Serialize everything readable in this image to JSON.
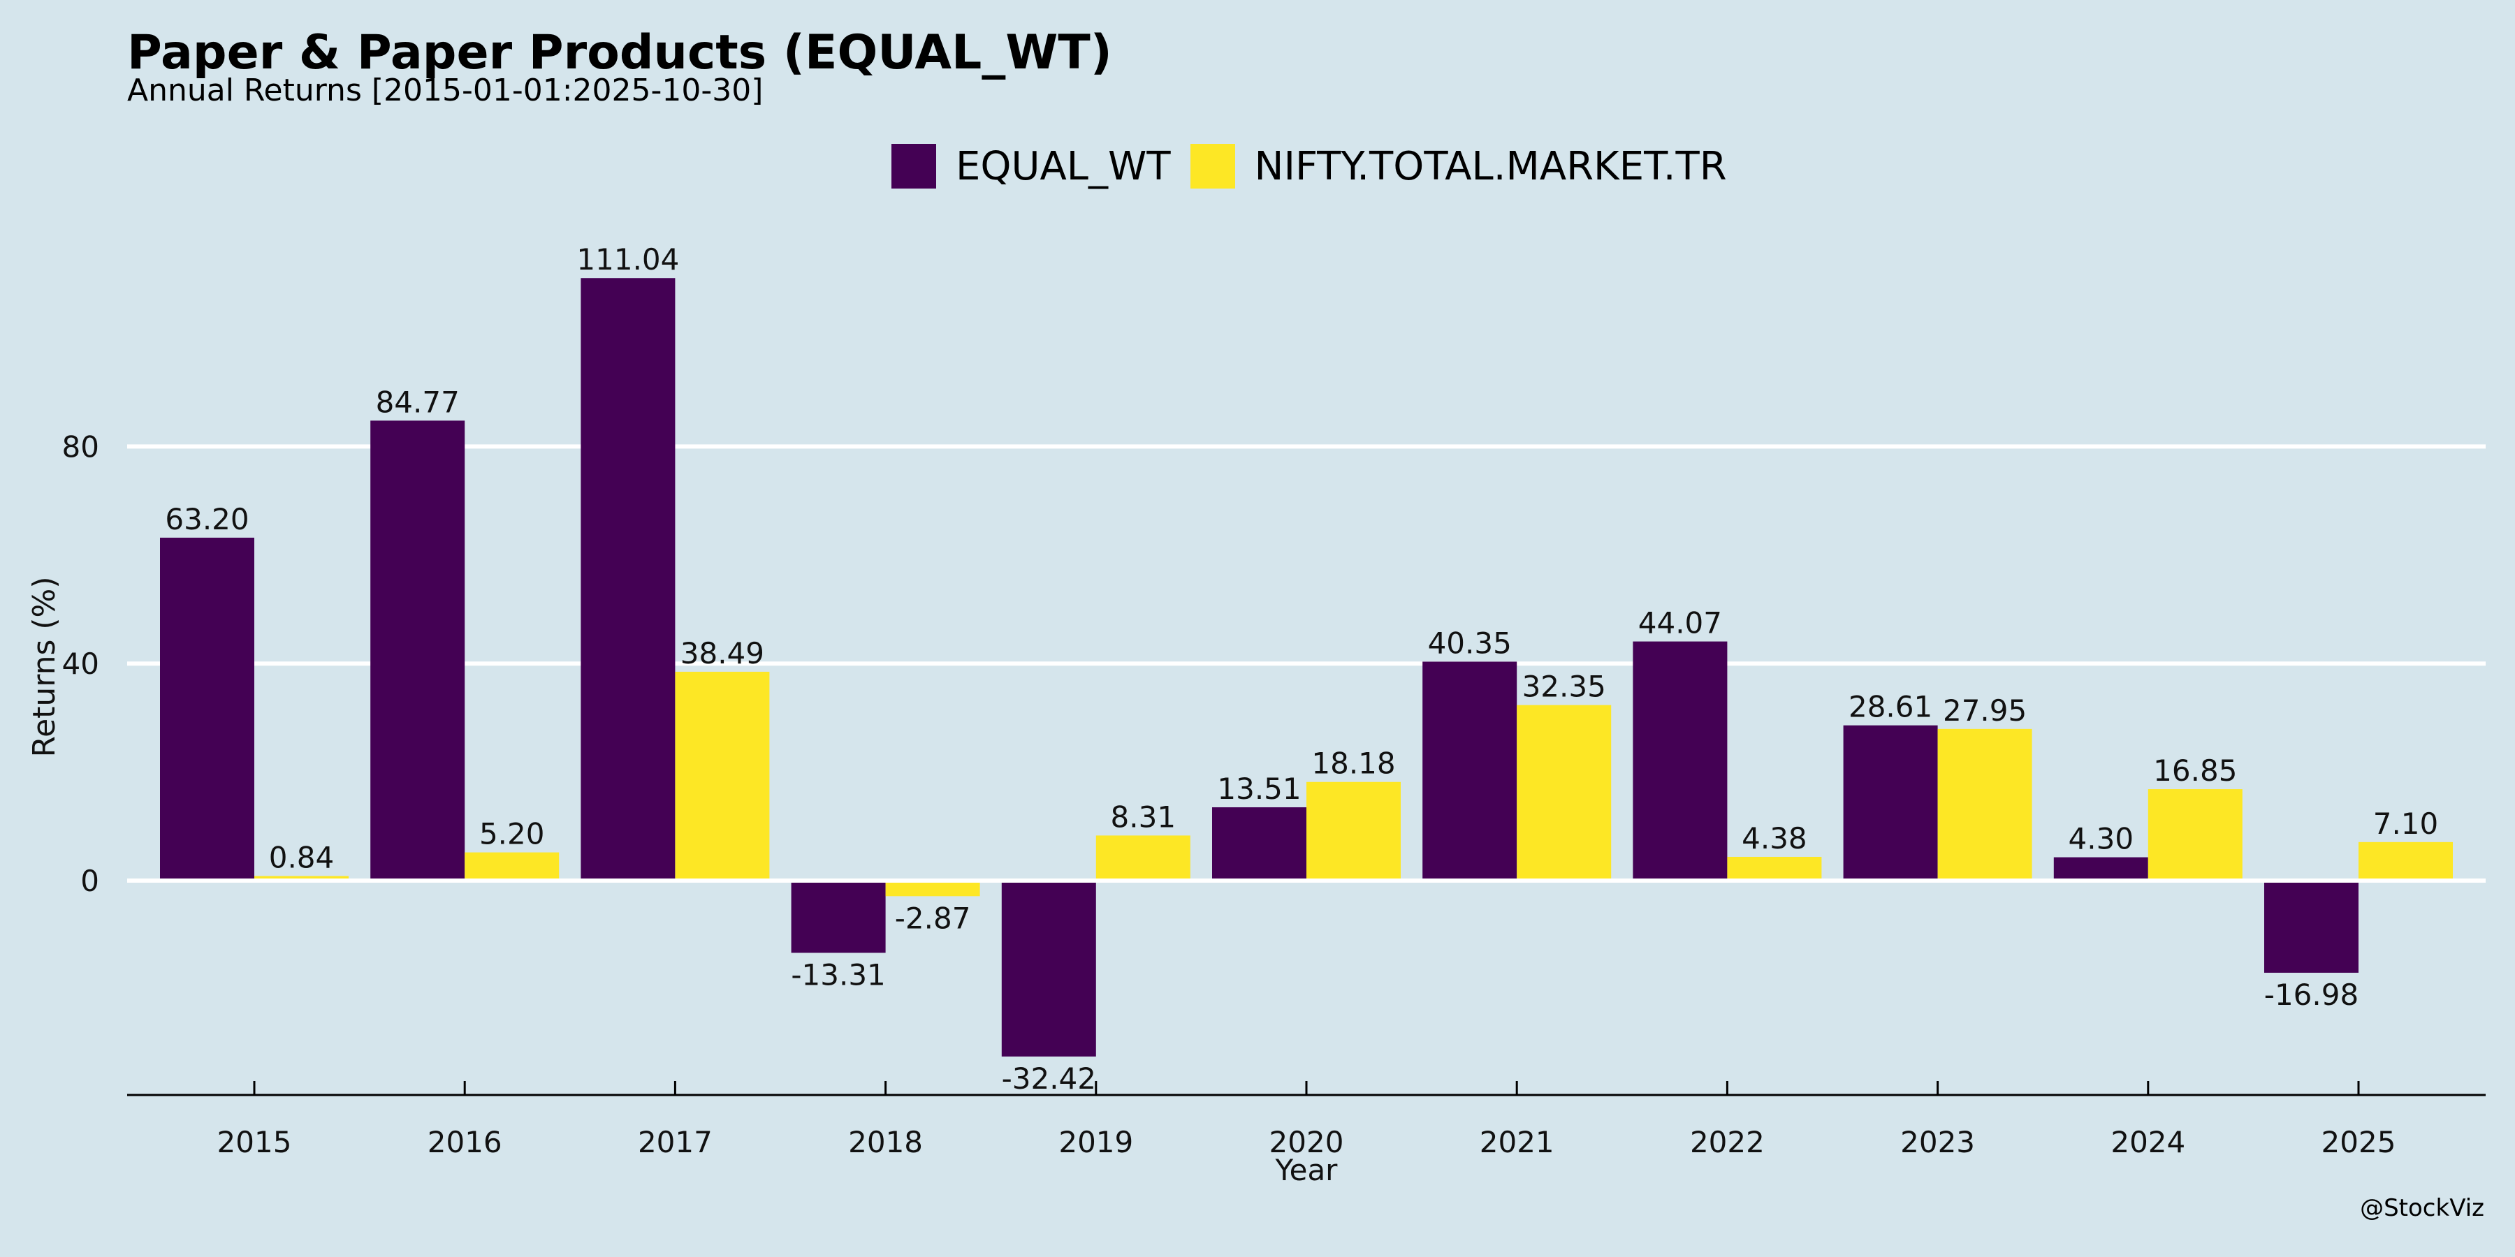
{
  "title": "Paper & Paper Products (EQUAL_WT)",
  "subtitle": "Annual Returns [2015-01-01:2025-10-30]",
  "watermark": "@StockViz",
  "colors": {
    "background": "#d5e5ec",
    "equal_wt": "#440154",
    "nifty": "#fde725",
    "gridline": "#ffffff"
  },
  "chart_data": {
    "type": "bar",
    "xlabel": "Year",
    "ylabel": "Returns (%)",
    "ylim": [
      -40,
      121
    ],
    "yticks": [
      0,
      40,
      80
    ],
    "grid": true,
    "legend_position": "top-center",
    "categories": [
      "2015",
      "2016",
      "2017",
      "2018",
      "2019",
      "2020",
      "2021",
      "2022",
      "2023",
      "2024",
      "2025"
    ],
    "series": [
      {
        "name": "EQUAL_WT",
        "color": "#440154",
        "values": [
          63.2,
          84.77,
          111.04,
          -13.31,
          -32.42,
          13.51,
          40.35,
          44.07,
          28.61,
          4.3,
          -16.98
        ],
        "labels": [
          "63.20",
          "84.77",
          "111.04",
          "-13.31",
          "-32.42",
          "13.51",
          "40.35",
          "44.07",
          "28.61",
          "4.30",
          "-16.98"
        ]
      },
      {
        "name": "NIFTY.TOTAL.MARKET.TR",
        "color": "#fde725",
        "values": [
          0.84,
          5.2,
          38.49,
          -2.87,
          8.31,
          18.18,
          32.35,
          4.38,
          27.95,
          16.85,
          7.1
        ],
        "labels": [
          "0.84",
          "5.20",
          "38.49",
          "-2.87",
          "8.31",
          "18.18",
          "32.35",
          "4.38",
          "27.95",
          "16.85",
          "7.10"
        ]
      }
    ]
  }
}
